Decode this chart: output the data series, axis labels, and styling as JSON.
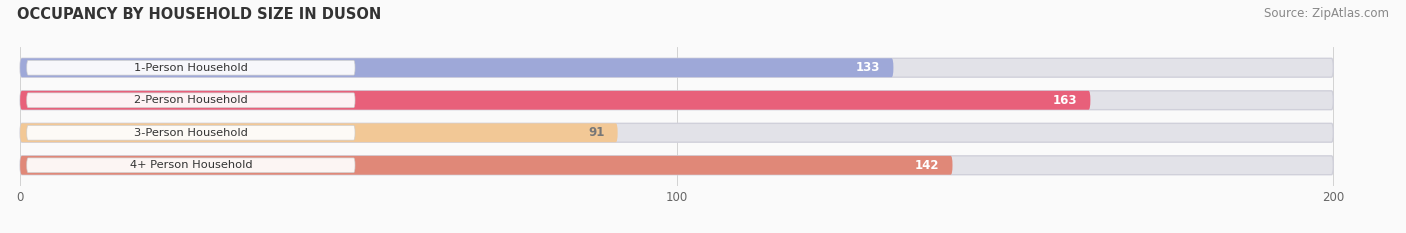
{
  "title": "OCCUPANCY BY HOUSEHOLD SIZE IN DUSON",
  "source": "Source: ZipAtlas.com",
  "categories": [
    "1-Person Household",
    "2-Person Household",
    "3-Person Household",
    "4+ Person Household"
  ],
  "values": [
    133,
    163,
    91,
    142
  ],
  "bar_colors": [
    "#9EA8D8",
    "#E8607A",
    "#F2C896",
    "#E08878"
  ],
  "bar_bg_color": "#E2E2E8",
  "bar_border_color": "#D0D0DA",
  "label_bg_color": "#FFFFFF",
  "value_colors": [
    "#FFFFFF",
    "#FFFFFF",
    "#777777",
    "#FFFFFF"
  ],
  "xlim_data": [
    0,
    200
  ],
  "xticks": [
    0,
    100,
    200
  ],
  "background_color": "#FAFAFA",
  "title_fontsize": 10.5,
  "source_fontsize": 8.5,
  "figsize": [
    14.06,
    2.33
  ],
  "dpi": 100
}
